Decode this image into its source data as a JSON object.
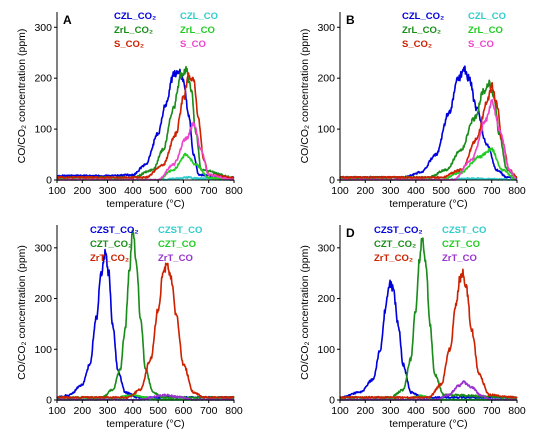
{
  "chart_data": [
    {
      "type": "line",
      "panel": "A",
      "xlabel": "temperature (°C)",
      "ylabel": "CO/CO₂ concentration (ppm)",
      "xlim": [
        100,
        800
      ],
      "ylim": [
        0,
        330
      ],
      "xticks": [
        100,
        200,
        300,
        400,
        500,
        600,
        700,
        800
      ],
      "yticks": [
        0,
        100,
        200,
        300
      ],
      "legend_position": "top-right",
      "series": [
        {
          "name": "CZL_CO₂",
          "color": "#0000dd",
          "x": [
            100,
            300,
            400,
            450,
            500,
            530,
            560,
            580,
            600,
            620,
            640,
            660,
            800
          ],
          "y": [
            8,
            8,
            10,
            30,
            90,
            150,
            205,
            215,
            195,
            130,
            50,
            10,
            5
          ]
        },
        {
          "name": "CZL_CO",
          "color": "#33cccc",
          "x": [
            100,
            500,
            580,
            620,
            660,
            800
          ],
          "y": [
            0,
            0,
            3,
            5,
            3,
            0
          ]
        },
        {
          "name": "ZrL_CO₂",
          "color": "#1a8c1a",
          "x": [
            100,
            400,
            480,
            520,
            560,
            590,
            610,
            630,
            650,
            670,
            800
          ],
          "y": [
            5,
            5,
            20,
            60,
            140,
            205,
            215,
            180,
            90,
            20,
            5
          ]
        },
        {
          "name": "ZrL_CO",
          "color": "#22cc22",
          "x": [
            100,
            500,
            560,
            610,
            650,
            700,
            800
          ],
          "y": [
            0,
            0,
            20,
            50,
            30,
            5,
            0
          ]
        },
        {
          "name": "S_CO₂",
          "color": "#cc2200",
          "x": [
            100,
            450,
            520,
            570,
            600,
            620,
            640,
            660,
            680,
            700,
            800
          ],
          "y": [
            5,
            5,
            30,
            90,
            160,
            205,
            195,
            120,
            40,
            10,
            5
          ]
        },
        {
          "name": "S_CO",
          "color": "#ee44cc",
          "x": [
            100,
            500,
            560,
            610,
            640,
            670,
            700,
            800
          ],
          "y": [
            0,
            0,
            30,
            80,
            110,
            60,
            10,
            0
          ]
        }
      ]
    },
    {
      "type": "line",
      "panel": "B",
      "xlabel": "temperature (°C)",
      "ylabel": "CO/CO₂ concentration (ppm)",
      "xlim": [
        100,
        800
      ],
      "ylim": [
        0,
        330
      ],
      "xticks": [
        100,
        200,
        300,
        400,
        500,
        600,
        700,
        800
      ],
      "yticks": [
        0,
        100,
        200,
        300
      ],
      "legend_position": "top-right",
      "series": [
        {
          "name": "CZL_CO₂",
          "color": "#0000dd",
          "x": [
            100,
            350,
            420,
            480,
            530,
            570,
            590,
            610,
            640,
            680,
            720,
            760,
            800
          ],
          "y": [
            5,
            5,
            15,
            50,
            130,
            200,
            220,
            200,
            140,
            70,
            20,
            5,
            5
          ]
        },
        {
          "name": "CZL_CO",
          "color": "#33cccc",
          "x": [
            100,
            500,
            600,
            700,
            800
          ],
          "y": [
            0,
            0,
            3,
            2,
            0
          ]
        },
        {
          "name": "ZrL_CO₂",
          "color": "#1a8c1a",
          "x": [
            100,
            450,
            520,
            580,
            630,
            670,
            690,
            710,
            730,
            760,
            800
          ],
          "y": [
            5,
            5,
            20,
            60,
            120,
            175,
            190,
            160,
            90,
            20,
            5
          ]
        },
        {
          "name": "ZrL_CO",
          "color": "#22cc22",
          "x": [
            100,
            500,
            580,
            650,
            700,
            740,
            800
          ],
          "y": [
            0,
            0,
            15,
            45,
            60,
            20,
            0
          ]
        },
        {
          "name": "S_CO₂",
          "color": "#cc2200",
          "x": [
            100,
            500,
            580,
            640,
            680,
            700,
            720,
            740,
            770,
            800
          ],
          "y": [
            5,
            5,
            20,
            80,
            150,
            185,
            150,
            80,
            20,
            5
          ]
        },
        {
          "name": "S_CO",
          "color": "#ee44cc",
          "x": [
            100,
            550,
            620,
            680,
            700,
            730,
            770,
            800
          ],
          "y": [
            0,
            0,
            40,
            120,
            155,
            100,
            20,
            0
          ]
        }
      ]
    },
    {
      "type": "line",
      "panel": "",
      "xlabel": "temperature (°C)",
      "ylabel": "CO/CO₂ concentration (ppm)",
      "xlim": [
        100,
        800
      ],
      "ylim": [
        0,
        345
      ],
      "xticks": [
        100,
        200,
        300,
        400,
        500,
        600,
        700,
        800
      ],
      "yticks": [
        0,
        100,
        200,
        300
      ],
      "legend_position": "top-right",
      "series": [
        {
          "name": "CZST_CO₂",
          "color": "#0000dd",
          "x": [
            100,
            150,
            200,
            230,
            255,
            275,
            290,
            305,
            320,
            340,
            370,
            420,
            800
          ],
          "y": [
            5,
            10,
            30,
            70,
            160,
            250,
            290,
            250,
            150,
            60,
            15,
            5,
            5
          ]
        },
        {
          "name": "CZST_CO",
          "color": "#33cccc",
          "x": [
            100,
            250,
            300,
            350,
            800
          ],
          "y": [
            0,
            0,
            3,
            0,
            0
          ]
        },
        {
          "name": "CZT_CO₂",
          "color": "#1a8c1a",
          "x": [
            100,
            280,
            320,
            350,
            370,
            385,
            400,
            415,
            430,
            450,
            480,
            520,
            800
          ],
          "y": [
            5,
            5,
            20,
            60,
            140,
            250,
            330,
            270,
            160,
            60,
            15,
            5,
            5
          ]
        },
        {
          "name": "CZT_CO",
          "color": "#22cc22",
          "x": [
            100,
            300,
            400,
            450,
            500,
            800
          ],
          "y": [
            0,
            0,
            10,
            5,
            0,
            0
          ]
        },
        {
          "name": "ZrT_CO₂",
          "color": "#cc2200",
          "x": [
            100,
            380,
            430,
            470,
            500,
            520,
            535,
            550,
            570,
            600,
            640,
            680,
            800
          ],
          "y": [
            5,
            5,
            20,
            80,
            180,
            250,
            265,
            245,
            170,
            70,
            15,
            5,
            5
          ]
        },
        {
          "name": "ZrT_CO",
          "color": "#9933cc",
          "x": [
            100,
            430,
            480,
            530,
            580,
            640,
            800
          ],
          "y": [
            0,
            0,
            6,
            10,
            6,
            0,
            0
          ]
        }
      ]
    },
    {
      "type": "line",
      "panel": "D",
      "xlabel": "temperature (°C)",
      "ylabel": "CO/CO₂ concentration (ppm)",
      "xlim": [
        100,
        800
      ],
      "ylim": [
        0,
        345
      ],
      "xticks": [
        100,
        200,
        300,
        400,
        500,
        600,
        700,
        800
      ],
      "yticks": [
        0,
        100,
        200,
        300
      ],
      "legend_position": "top-right",
      "series": [
        {
          "name": "CZST_CO₂",
          "color": "#0000dd",
          "x": [
            100,
            180,
            230,
            260,
            280,
            295,
            310,
            330,
            350,
            380,
            430,
            800
          ],
          "y": [
            5,
            15,
            40,
            100,
            180,
            230,
            220,
            150,
            70,
            15,
            5,
            5
          ]
        },
        {
          "name": "CZST_CO",
          "color": "#33cccc",
          "x": [
            100,
            250,
            300,
            350,
            800
          ],
          "y": [
            0,
            0,
            3,
            0,
            0
          ]
        },
        {
          "name": "CZT_CO₂",
          "color": "#1a8c1a",
          "x": [
            100,
            300,
            350,
            380,
            400,
            415,
            425,
            440,
            455,
            475,
            510,
            800
          ],
          "y": [
            5,
            5,
            20,
            80,
            180,
            280,
            325,
            270,
            150,
            50,
            10,
            5
          ]
        },
        {
          "name": "CZT_CO",
          "color": "#22cc22",
          "x": [
            100,
            350,
            420,
            480,
            800
          ],
          "y": [
            0,
            0,
            8,
            0,
            0
          ]
        },
        {
          "name": "ZrT_CO₂",
          "color": "#cc2200",
          "x": [
            100,
            450,
            500,
            535,
            560,
            575,
            585,
            600,
            620,
            650,
            690,
            800
          ],
          "y": [
            5,
            5,
            30,
            100,
            190,
            240,
            250,
            220,
            140,
            50,
            10,
            5
          ]
        },
        {
          "name": "ZrT_CO",
          "color": "#9933cc",
          "x": [
            100,
            480,
            530,
            570,
            590,
            620,
            660,
            700,
            800
          ],
          "y": [
            0,
            0,
            10,
            28,
            35,
            25,
            8,
            0,
            0
          ]
        }
      ]
    }
  ]
}
